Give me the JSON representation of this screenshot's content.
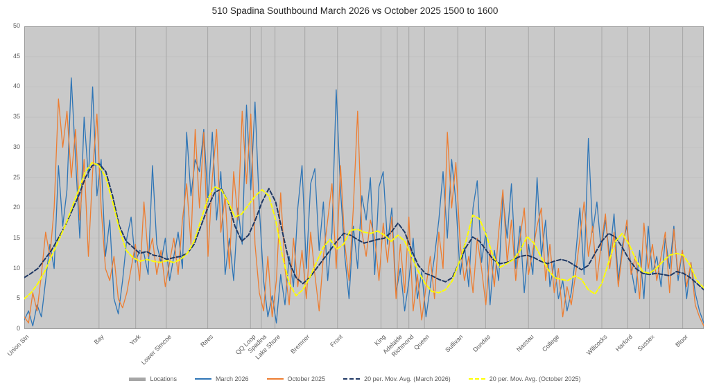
{
  "title": "510 Spadina Southbound March 2026 vs October 2025 1500 to 1600",
  "colors": {
    "march": "#2E75B6",
    "october": "#ED7D31",
    "ma_march": "#1F3864",
    "ma_october": "#FFFF00",
    "locations_legend": "#A6A6A6",
    "plot_bg": "#C9C9C9",
    "gridline": "#A6A6A6",
    "axis_text": "#595959"
  },
  "legend": [
    {
      "label": "Locations",
      "type": "thick",
      "color": "#A6A6A6"
    },
    {
      "label": "March 2026",
      "type": "solid",
      "color": "#2E75B6"
    },
    {
      "label": "October 2025",
      "type": "solid",
      "color": "#ED7D31"
    },
    {
      "label": "20 per. Mov. Avg. (March 2026)",
      "type": "dashed",
      "color": "#1F3864"
    },
    {
      "label": "20 per. Mov. Avg. (October 2025)",
      "type": "dashed",
      "color": "#FFFF00"
    }
  ],
  "chart_data": {
    "type": "line",
    "title": "510 Spadina Southbound March 2026 vs October 2025 1500 to 1600",
    "xlabel": "",
    "ylabel": "",
    "ylim": [
      0,
      50
    ],
    "yticks": [
      0,
      5,
      10,
      15,
      20,
      25,
      30,
      35,
      40,
      45,
      50
    ],
    "grid": "vertical location lines on gray plot background",
    "legend_position": "bottom",
    "locations": [
      {
        "name": "Union Stn",
        "pos": 0.0
      },
      {
        "name": "Bay",
        "pos": 0.11
      },
      {
        "name": "York",
        "pos": 0.164
      },
      {
        "name": "Lower Simcoe",
        "pos": 0.209
      },
      {
        "name": "Rees",
        "pos": 0.27
      },
      {
        "name": "QQ Loop",
        "pos": 0.333
      },
      {
        "name": "Spadina",
        "pos": 0.349
      },
      {
        "name": "Lake Shore",
        "pos": 0.369
      },
      {
        "name": "Bremner",
        "pos": 0.413
      },
      {
        "name": "Front",
        "pos": 0.461
      },
      {
        "name": "King",
        "pos": 0.525
      },
      {
        "name": "Adelaide",
        "pos": 0.549
      },
      {
        "name": "Richmond",
        "pos": 0.566
      },
      {
        "name": "Queen",
        "pos": 0.589
      },
      {
        "name": "Sullivan",
        "pos": 0.638
      },
      {
        "name": "Dundas",
        "pos": 0.679
      },
      {
        "name": "Nassau",
        "pos": 0.742
      },
      {
        "name": "College",
        "pos": 0.78
      },
      {
        "name": "Willcocks",
        "pos": 0.85
      },
      {
        "name": "Harford",
        "pos": 0.888
      },
      {
        "name": "Sussex",
        "pos": 0.92
      },
      {
        "name": "Bloor",
        "pos": 0.969
      }
    ],
    "series": [
      {
        "name": "March 2026",
        "color": "#2E75B6",
        "style": "solid",
        "values": [
          1.5,
          3,
          0.5,
          4,
          2,
          8,
          14,
          10,
          27,
          17,
          23,
          41.5,
          28,
          15,
          35,
          25,
          40,
          22,
          28,
          12,
          18,
          5,
          2.5,
          8,
          15,
          18.5,
          11,
          13,
          12.5,
          9,
          27,
          14,
          11,
          15,
          8,
          12,
          16,
          10,
          32.5,
          22,
          28,
          26,
          33,
          21,
          32.5,
          18,
          26,
          9,
          15,
          8,
          20,
          14,
          37,
          23,
          37.5,
          20,
          8,
          2,
          5.5,
          1,
          9,
          4,
          12,
          7,
          20,
          27,
          10,
          24,
          26.5,
          13,
          21,
          8,
          16,
          39.5,
          23,
          12,
          5,
          17,
          10,
          22,
          18,
          25,
          9,
          23.5,
          26,
          14,
          20,
          6,
          10,
          3,
          8,
          15,
          5,
          9.5,
          2,
          7,
          12,
          18,
          26,
          15,
          28,
          21,
          9,
          14,
          7,
          20,
          24.5,
          11,
          16,
          4,
          13,
          8,
          22,
          15,
          24,
          10,
          17,
          6,
          14,
          9,
          25,
          12,
          18,
          7,
          11,
          5,
          8,
          3,
          6,
          12,
          20,
          9,
          31.5,
          16,
          21,
          13,
          18,
          12,
          19,
          8,
          14,
          17,
          10,
          6,
          13,
          5,
          17,
          9,
          12,
          7,
          15,
          10,
          17,
          8,
          13,
          5,
          11,
          6,
          3,
          1
        ]
      },
      {
        "name": "October 2025",
        "color": "#ED7D31",
        "style": "solid",
        "values": [
          2,
          1,
          6,
          3,
          9,
          16,
          12,
          20,
          38,
          30,
          36,
          25,
          33,
          18,
          28,
          12,
          26,
          35.5,
          20,
          10,
          8,
          12,
          5,
          3.5,
          6,
          10,
          14,
          8,
          21,
          12,
          15,
          9,
          13,
          7,
          11,
          15,
          9,
          18,
          24,
          14,
          33,
          20,
          32.5,
          12,
          25,
          33,
          16,
          22,
          10,
          26,
          18,
          36,
          24,
          35.5,
          14,
          6,
          3,
          12,
          2,
          8,
          22.5,
          10,
          4,
          15,
          7,
          13,
          5,
          16,
          9,
          3,
          12,
          18,
          24,
          10,
          27,
          14,
          8,
          20,
          36,
          16,
          12,
          18,
          15,
          8,
          17.5,
          11,
          18.5,
          5,
          14,
          6,
          18.5,
          3,
          9,
          1.5,
          7,
          12,
          5,
          16,
          10,
          32.5,
          20,
          27.5,
          14,
          8,
          12,
          6,
          15,
          10,
          4,
          13,
          7,
          16,
          23,
          11,
          18,
          8,
          15,
          20,
          9,
          13,
          17,
          20,
          8,
          14,
          6,
          10,
          2,
          7,
          4,
          9,
          15,
          21,
          12,
          17,
          8,
          14,
          19,
          10,
          16,
          7,
          13,
          18,
          9,
          12,
          5,
          17.5,
          10,
          14,
          8,
          12,
          16,
          6,
          16.5,
          9,
          13,
          7,
          11,
          4,
          2,
          0.5
        ]
      },
      {
        "name": "20 per. Mov. Avg. (March 2026)",
        "color": "#1F3864",
        "style": "dashed",
        "values": [
          8.5,
          9.2,
          10,
          11.5,
          13,
          15,
          17,
          19.5,
          22,
          25,
          27,
          27.3,
          26,
          22,
          17,
          14.5,
          13.5,
          12.5,
          12.8,
          12.2,
          12,
          11.5,
          11.8,
          12,
          12.5,
          14,
          17,
          20,
          22.5,
          23.2,
          21,
          17,
          14.5,
          15.5,
          18,
          21,
          23.2,
          21,
          16,
          11,
          8.5,
          7.5,
          8.5,
          10,
          11.5,
          13,
          14.5,
          15.8,
          15.5,
          14.8,
          14.2,
          14.5,
          14.8,
          15,
          16,
          17.5,
          16,
          13,
          10.5,
          9.2,
          8.8,
          8.2,
          7.8,
          8.5,
          11,
          13.5,
          15.2,
          14.5,
          13,
          11.5,
          10.8,
          11,
          11.5,
          12,
          12.2,
          11.8,
          11.2,
          10.8,
          11.2,
          11.5,
          11.2,
          10.5,
          9.8,
          10.5,
          12.5,
          14.5,
          15.8,
          15.2,
          13.5,
          11.5,
          10,
          9.2,
          9,
          9.2,
          9,
          8.8,
          9.5,
          9.2,
          8.5,
          7.5,
          6.5
        ]
      },
      {
        "name": "20 per. Mov. Avg. (October 2025)",
        "color": "#FFFF00",
        "style": "dashed",
        "values": [
          5,
          6,
          7.5,
          9.5,
          12,
          14.5,
          17,
          20,
          23,
          26,
          27.5,
          27,
          25,
          21,
          16.5,
          13,
          11.8,
          11.2,
          11.5,
          11.2,
          11,
          11.3,
          11,
          11.5,
          12.5,
          14.5,
          18,
          21.5,
          23.5,
          23,
          21,
          18.5,
          19,
          20.5,
          22,
          23,
          22,
          18,
          12,
          7.5,
          5.5,
          6.5,
          8.5,
          11,
          13.5,
          14.8,
          13.2,
          14,
          16.3,
          16.5,
          16,
          15.8,
          16.2,
          15.5,
          14.5,
          15.5,
          14.5,
          12,
          9.5,
          7.5,
          6.2,
          6,
          6.5,
          8,
          11,
          14.5,
          18.8,
          18.2,
          15.5,
          12,
          10.2,
          10.8,
          11.5,
          13,
          15.3,
          14.2,
          12,
          10,
          8.5,
          8.2,
          8,
          8.8,
          8.2,
          6.5,
          5.8,
          7.5,
          11,
          14.5,
          15.8,
          14,
          11.5,
          9.5,
          9.2,
          10,
          11.2,
          12.2,
          12.5,
          12.2,
          10.5,
          8,
          6.8
        ]
      }
    ]
  }
}
